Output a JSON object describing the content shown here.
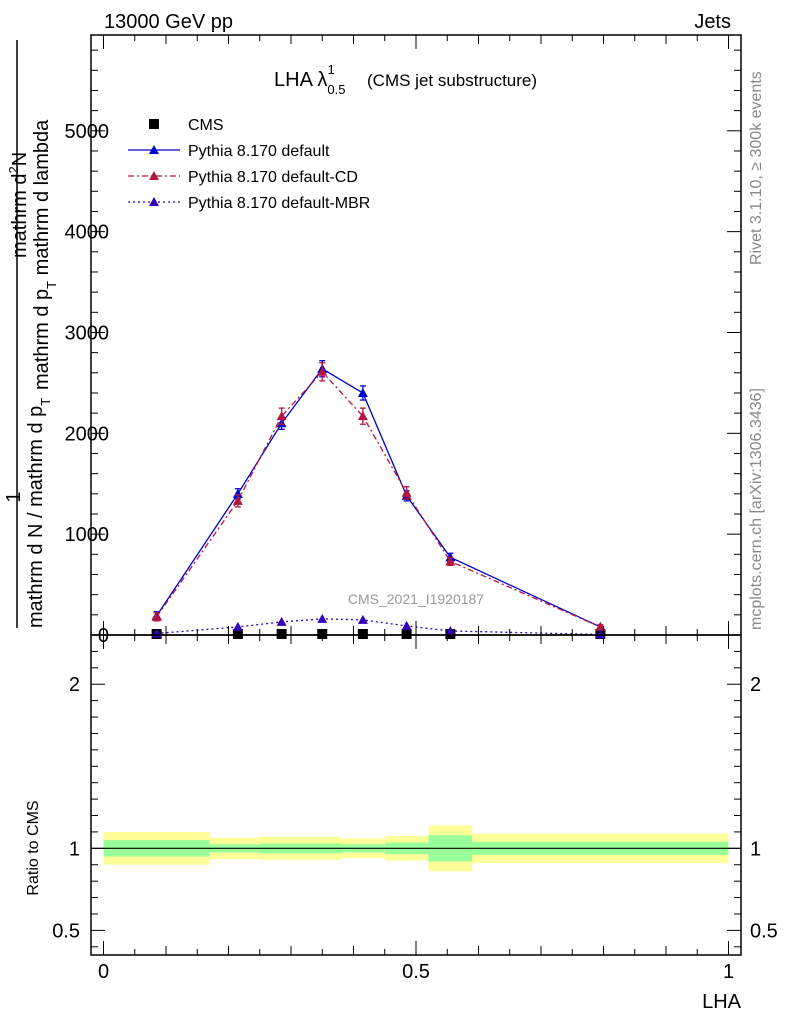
{
  "header": {
    "left": "13000 GeV pp",
    "right": "Jets"
  },
  "side_labels": {
    "rivet": "Rivet 3.1.10, ≥ 300k events",
    "mcplots": "mcplots.cern.ch [arXiv:1306.3436]"
  },
  "chart_data": [
    {
      "type": "line",
      "title_main": "LHA λ",
      "title_sup": "1",
      "title_sub": "0.5",
      "title_suffix": "(CMS jet substructure)",
      "watermark": "CMS_2021_I1920187",
      "ylabel_top_line1": "mathrm d",
      "ylabel_top_line1_sup": "2",
      "ylabel_top_line1_tail": "N",
      "ylabel_top_line2": "mathrm d p",
      "ylabel_top_line2_sub": "T",
      "ylabel_top_line2_tail": " mathrm d lambda",
      "ylabel_one": "1",
      "ylabel_bottom": "mathrm d N / mathrm d p",
      "ylabel_bottom_sub": "T",
      "ylim": [
        0,
        5950
      ],
      "xlim": [
        -0.02,
        1.02
      ],
      "y_ticks": [
        0,
        1000,
        2000,
        3000,
        4000,
        5000
      ],
      "y_tick_labels": [
        "0",
        "1000",
        "2000",
        "3000",
        "4000",
        "5000"
      ],
      "legend_position": "top-left",
      "series": [
        {
          "name": "CMS",
          "color": "#000000",
          "marker": "square",
          "x": [
            0.085,
            0.215,
            0.285,
            0.35,
            0.415,
            0.485,
            0.555,
            0.795
          ],
          "y": [
            0,
            0,
            0,
            0,
            0,
            0,
            0,
            0
          ]
        },
        {
          "name": "Pythia 8.170 default",
          "color": "#0000cc",
          "marker": "triangle",
          "line": "solid",
          "x": [
            0.085,
            0.215,
            0.285,
            0.35,
            0.415,
            0.485,
            0.555,
            0.795
          ],
          "y": [
            190,
            1400,
            2100,
            2640,
            2400,
            1380,
            770,
            80
          ],
          "err": [
            40,
            50,
            60,
            80,
            70,
            50,
            40,
            20
          ]
        },
        {
          "name": "Pythia 8.170 default-CD",
          "color": "#b5163f",
          "marker": "triangle",
          "line": "dashdot",
          "x": [
            0.085,
            0.215,
            0.285,
            0.35,
            0.415,
            0.485,
            0.555,
            0.795
          ],
          "y": [
            180,
            1330,
            2170,
            2610,
            2170,
            1410,
            730,
            80
          ],
          "err": [
            40,
            60,
            80,
            90,
            80,
            60,
            40,
            20
          ]
        },
        {
          "name": "Pythia 8.170 default-MBR",
          "color": "#3300bb",
          "marker": "triangle",
          "line": "dotted",
          "x": [
            0.085,
            0.215,
            0.285,
            0.35,
            0.415,
            0.485,
            0.555,
            0.795
          ],
          "y": [
            15,
            80,
            130,
            160,
            150,
            90,
            40,
            5
          ]
        }
      ]
    },
    {
      "type": "area",
      "ylabel": "Ratio to CMS",
      "xlabel": "LHA",
      "ylim": [
        0.35,
        2.3
      ],
      "xlim": [
        -0.02,
        1.02
      ],
      "y_ticks": [
        0.5,
        1,
        2
      ],
      "y_tick_labels": [
        "0.5",
        "1",
        "2"
      ],
      "x_ticks": [
        0,
        0.5,
        1
      ],
      "x_tick_labels": [
        "0",
        "0.5",
        "1"
      ],
      "bands": {
        "edges": [
          0,
          0.17,
          0.25,
          0.38,
          0.45,
          0.52,
          0.59,
          1.0
        ],
        "inner_lo": [
          0.95,
          0.975,
          0.97,
          0.975,
          0.965,
          0.92,
          0.96
        ],
        "inner_hi": [
          1.05,
          1.025,
          1.03,
          1.025,
          1.035,
          1.08,
          1.04
        ],
        "outer_lo": [
          0.9,
          0.935,
          0.93,
          0.94,
          0.925,
          0.86,
          0.91
        ],
        "outer_hi": [
          1.1,
          1.065,
          1.07,
          1.06,
          1.075,
          1.14,
          1.09
        ],
        "inner_color": "#99ff99",
        "outer_color": "#ffff99"
      },
      "reference_line": 1
    }
  ]
}
